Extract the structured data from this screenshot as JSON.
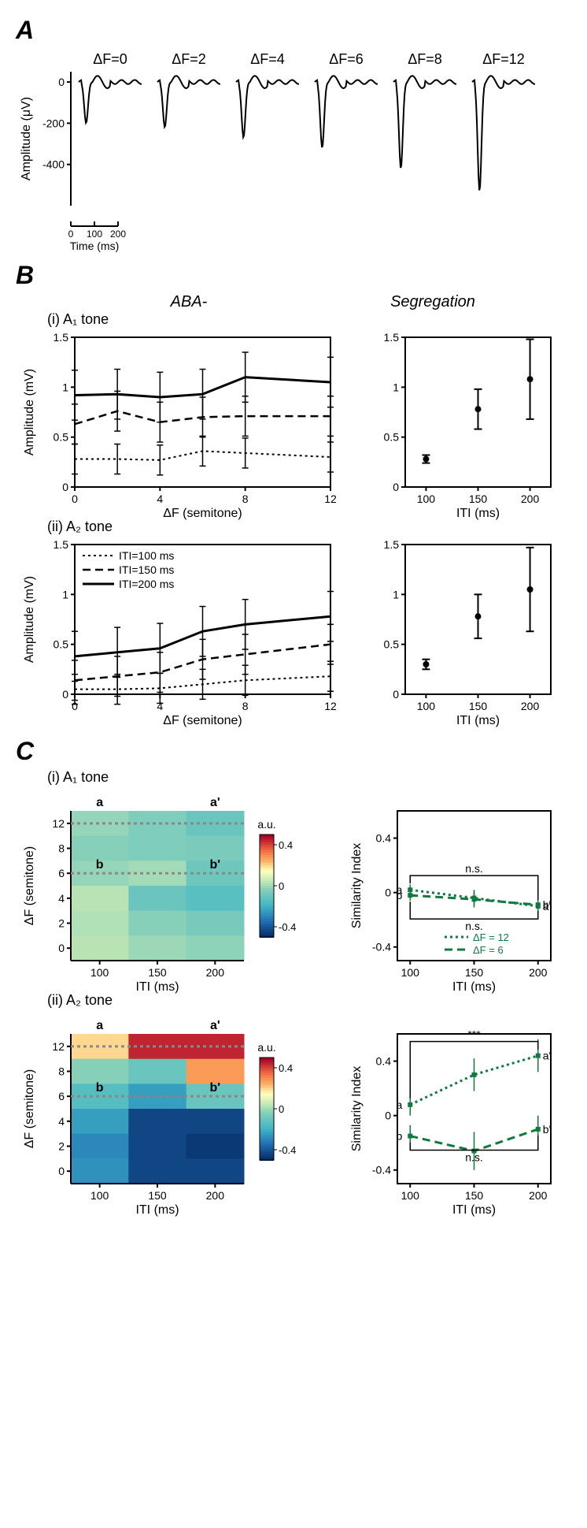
{
  "panelA": {
    "label": "A",
    "deltaF_labels": [
      "ΔF=0",
      "ΔF=2",
      "ΔF=4",
      "ΔF=6",
      "ΔF=8",
      "ΔF=12"
    ],
    "yaxis_label": "Amplitude (μV)",
    "yticks": [
      0,
      -200,
      -400
    ],
    "xaxis_label": "Time (ms)",
    "xticks": [
      0,
      100,
      200
    ],
    "trace_depth": [
      200,
      220,
      270,
      320,
      420,
      530
    ],
    "color": "#000000"
  },
  "panelB": {
    "label": "B",
    "header_left": "ABA-",
    "header_right": "Segregation",
    "sub1": "(i) A₁ tone",
    "sub2": "(ii) A₂ tone",
    "xaxis_left": "ΔF (semitone)",
    "yaxis": "Amplitude (mV)",
    "xticks_left": [
      0,
      4,
      8,
      12
    ],
    "yticks": [
      0,
      0.5,
      1.0,
      1.5
    ],
    "xaxis_right": "ITI (ms)",
    "xticks_right": [
      100,
      150,
      200
    ],
    "legend": [
      "ITI=100 ms",
      "ITI=150 ms",
      "ITI=200 ms"
    ],
    "A1": {
      "iti100": [
        0.28,
        0.28,
        0.27,
        0.36,
        0.34,
        0.3
      ],
      "iti150": [
        0.63,
        0.76,
        0.65,
        0.7,
        0.71,
        0.71
      ],
      "iti200": [
        0.92,
        0.93,
        0.9,
        0.93,
        1.1,
        1.05
      ],
      "seg": {
        "x": [
          100,
          150,
          200
        ],
        "y": [
          0.28,
          0.78,
          1.08
        ],
        "err": [
          0.04,
          0.2,
          0.4
        ]
      }
    },
    "A2": {
      "iti100": [
        0.05,
        0.05,
        0.06,
        0.1,
        0.14,
        0.18
      ],
      "iti150": [
        0.14,
        0.18,
        0.22,
        0.35,
        0.4,
        0.5
      ],
      "iti200": [
        0.38,
        0.42,
        0.46,
        0.63,
        0.7,
        0.78
      ],
      "seg": {
        "x": [
          100,
          150,
          200
        ],
        "y": [
          0.3,
          0.78,
          1.05
        ],
        "err": [
          0.05,
          0.22,
          0.42
        ]
      }
    },
    "err_width": 0.1,
    "color": "#000000"
  },
  "panelC": {
    "label": "C",
    "sub1": "(i) A₁ tone",
    "sub2": "(ii) A₂ tone",
    "xaxis": "ITI (ms)",
    "yaxis": "ΔF (semitone)",
    "xticks": [
      100,
      150,
      200
    ],
    "yticks_heat": [
      0,
      2,
      4,
      6,
      8,
      12
    ],
    "colorbar_label": "a.u.",
    "colorbar_ticks": [
      -0.4,
      0,
      0.4
    ],
    "markers_a": [
      "a",
      "a'"
    ],
    "markers_b": [
      "b",
      "b'"
    ],
    "right_yaxis": "Similarity Index",
    "right_yticks": [
      -0.4,
      0,
      0.4
    ],
    "heatmap_A1": [
      [
        -0.02,
        -0.05,
        -0.1
      ],
      [
        -0.04,
        -0.05,
        -0.06
      ],
      [
        -0.02,
        0.0,
        -0.09
      ],
      [
        0.03,
        -0.1,
        -0.14
      ],
      [
        0.02,
        -0.04,
        -0.07
      ],
      [
        0.03,
        -0.01,
        -0.03
      ]
    ],
    "heatmap_A2": [
      [
        0.2,
        0.45,
        0.45
      ],
      [
        -0.04,
        -0.1,
        0.28
      ],
      [
        -0.15,
        -0.25,
        -0.1
      ],
      [
        -0.25,
        -0.45,
        -0.45
      ],
      [
        -0.3,
        -0.45,
        -0.48
      ],
      [
        -0.28,
        -0.45,
        -0.45
      ]
    ],
    "similarity_A1": {
      "df12": {
        "x": [
          100,
          150,
          200
        ],
        "y": [
          0.02,
          -0.04,
          -0.1
        ],
        "err": [
          0.04,
          0.06,
          0.08
        ]
      },
      "df6": {
        "x": [
          100,
          150,
          200
        ],
        "y": [
          -0.02,
          -0.05,
          -0.09
        ],
        "err": [
          0.04,
          0.06,
          0.08
        ]
      },
      "sig_top": "n.s.",
      "sig_bot": "n.s."
    },
    "similarity_A2": {
      "df12": {
        "x": [
          100,
          150,
          200
        ],
        "y": [
          0.08,
          0.3,
          0.44
        ],
        "err": [
          0.08,
          0.12,
          0.12
        ]
      },
      "df6": {
        "x": [
          100,
          150,
          200
        ],
        "y": [
          -0.15,
          -0.26,
          -0.1
        ],
        "err": [
          0.08,
          0.14,
          0.1
        ]
      },
      "sig_top": "***",
      "sig_bot": "n.s."
    },
    "legend": [
      "ΔF = 12",
      "ΔF = 6"
    ],
    "green": "#0f7a3e",
    "gray_dash": "#888888"
  },
  "colormap": {
    "stops": [
      {
        "v": -0.5,
        "c": "#08306b"
      },
      {
        "v": -0.35,
        "c": "#2171b5"
      },
      {
        "v": -0.2,
        "c": "#41b6c4"
      },
      {
        "v": -0.05,
        "c": "#7fcdbb"
      },
      {
        "v": 0.05,
        "c": "#c7e9b4"
      },
      {
        "v": 0.15,
        "c": "#ffffbf"
      },
      {
        "v": 0.25,
        "c": "#fdae61"
      },
      {
        "v": 0.35,
        "c": "#f46d43"
      },
      {
        "v": 0.5,
        "c": "#a50026"
      }
    ]
  }
}
